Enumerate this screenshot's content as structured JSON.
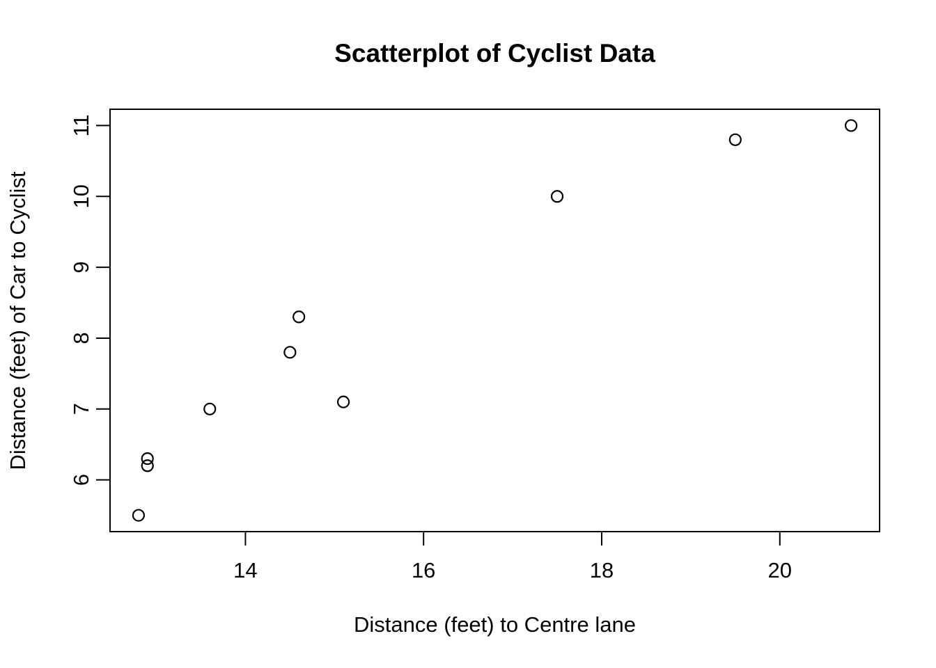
{
  "chart_data": {
    "type": "scatter",
    "title": "Scatterplot of Cyclist Data",
    "xlabel": "Distance (feet) to Centre lane",
    "ylabel": "Distance (feet) of Car to Cyclist",
    "points": [
      {
        "x": 12.8,
        "y": 5.5
      },
      {
        "x": 12.9,
        "y": 6.2
      },
      {
        "x": 12.9,
        "y": 6.3
      },
      {
        "x": 13.6,
        "y": 7.0
      },
      {
        "x": 14.5,
        "y": 7.8
      },
      {
        "x": 14.6,
        "y": 8.3
      },
      {
        "x": 15.1,
        "y": 7.1
      },
      {
        "x": 17.5,
        "y": 10.0
      },
      {
        "x": 19.5,
        "y": 10.8
      },
      {
        "x": 20.8,
        "y": 11.0
      }
    ],
    "xticks": [
      14,
      16,
      18,
      20
    ],
    "yticks": [
      6,
      7,
      8,
      9,
      10,
      11
    ],
    "xlim": [
      12.48,
      21.12
    ],
    "ylim": [
      5.27,
      11.23
    ],
    "grid": false,
    "legend": null,
    "marker": "open-circle",
    "colors": {
      "point_stroke": "#000000",
      "axis": "#000000",
      "background": "#ffffff",
      "text": "#000000"
    }
  }
}
